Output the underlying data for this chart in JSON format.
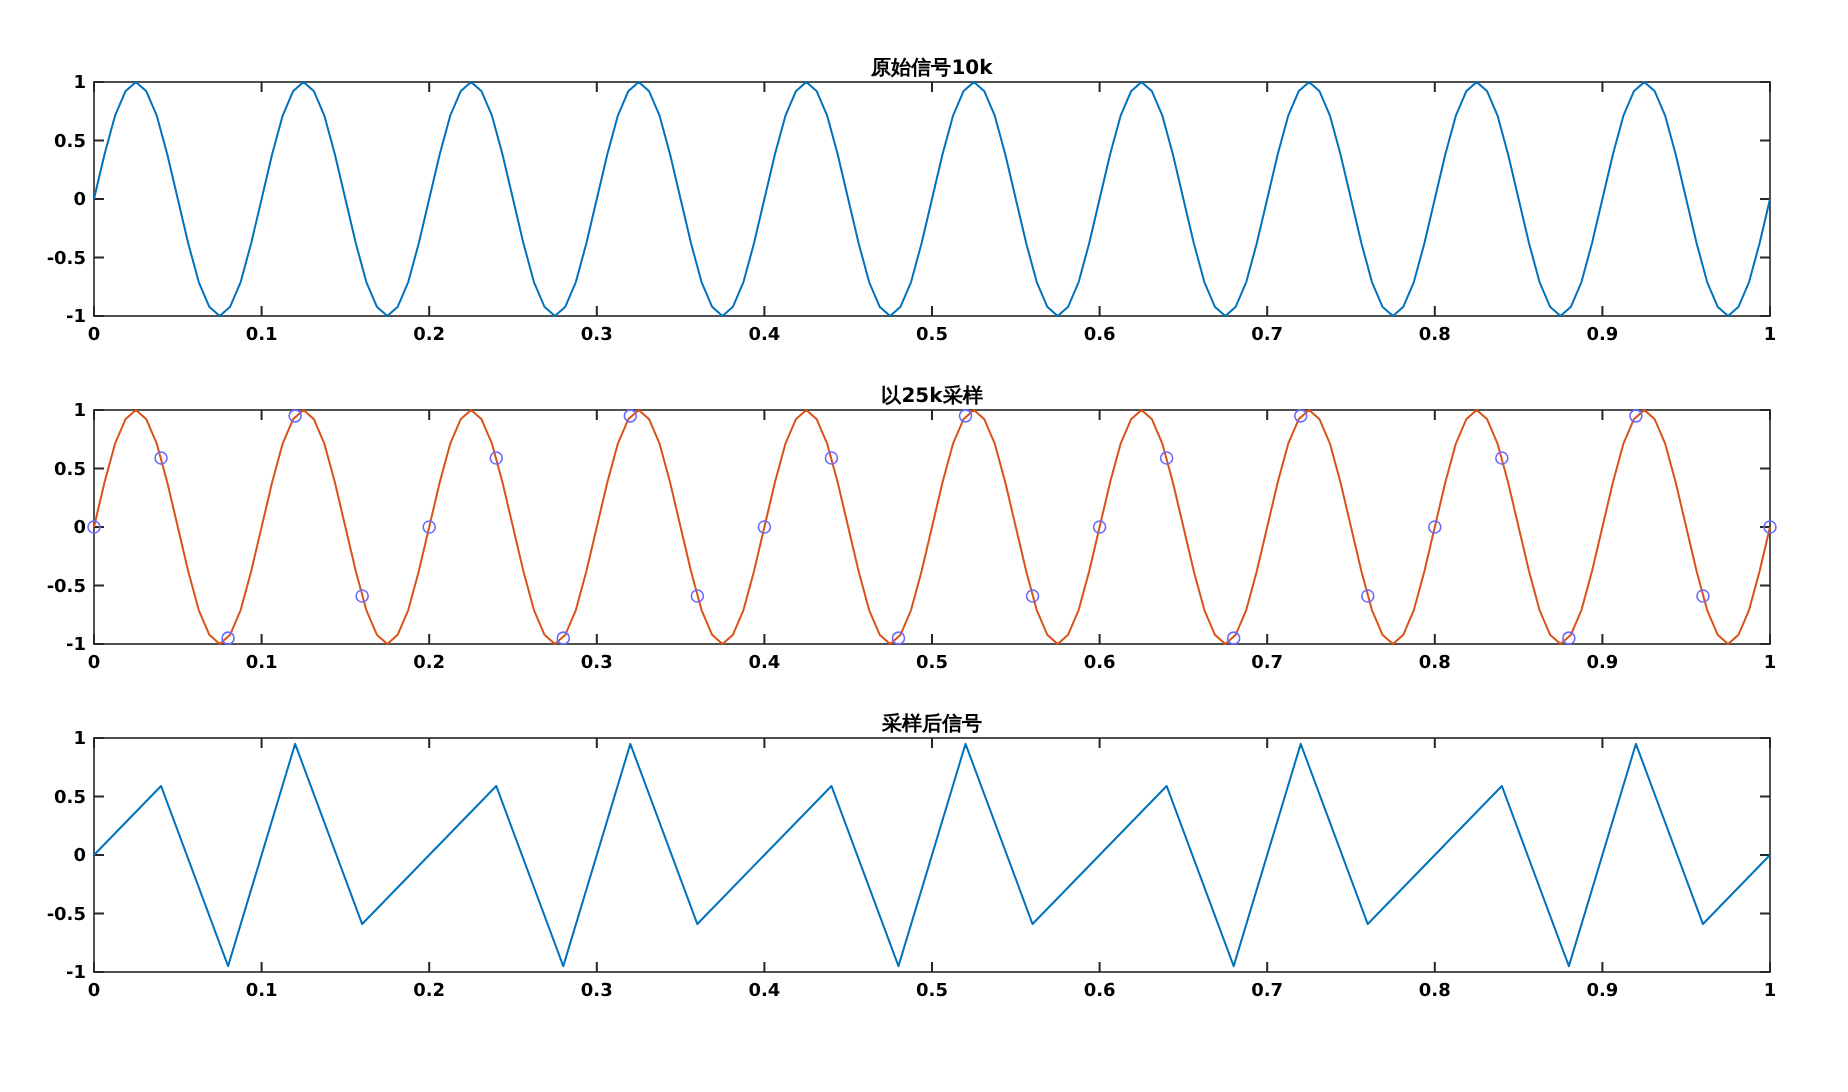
{
  "chart_data": [
    {
      "type": "line",
      "title": "原始信号10k",
      "xlim": [
        0,
        1
      ],
      "ylim": [
        -1,
        1
      ],
      "xticks": [
        0,
        0.1,
        0.2,
        0.3,
        0.4,
        0.5,
        0.6,
        0.7,
        0.8,
        0.9,
        1
      ],
      "yticks": [
        -1,
        -0.5,
        0,
        0.5,
        1
      ],
      "series": [
        {
          "color": "#0072bd",
          "x": [
            0,
            0.00625,
            0.0125,
            0.01875,
            0.025,
            0.03125,
            0.0375,
            0.04375,
            0.05,
            0.05625,
            0.0625,
            0.06875,
            0.075,
            0.08125,
            0.0875,
            0.09375,
            0.1,
            0.10625,
            0.1125,
            0.11875,
            0.125,
            0.13125,
            0.1375,
            0.14375,
            0.15,
            0.15625,
            0.1625,
            0.16875,
            0.175,
            0.18125,
            0.1875,
            0.19375,
            0.2,
            0.20625,
            0.2125,
            0.21875,
            0.225,
            0.23125,
            0.2375,
            0.24375,
            0.25,
            0.25625,
            0.2625,
            0.26875,
            0.275,
            0.28125,
            0.2875,
            0.29375,
            0.3,
            0.30625,
            0.3125,
            0.31875,
            0.325,
            0.33125,
            0.3375,
            0.34375,
            0.35,
            0.35625,
            0.3625,
            0.36875,
            0.375,
            0.38125,
            0.3875,
            0.39375,
            0.4,
            0.40625,
            0.4125,
            0.41875,
            0.425,
            0.43125,
            0.4375,
            0.44375,
            0.45,
            0.45625,
            0.4625,
            0.46875,
            0.475,
            0.48125,
            0.4875,
            0.49375,
            0.5,
            0.50625,
            0.5125,
            0.51875,
            0.525,
            0.53125,
            0.5375,
            0.54375,
            0.55,
            0.55625,
            0.5625,
            0.56875,
            0.575,
            0.58125,
            0.5875,
            0.59375,
            0.6,
            0.60625,
            0.6125,
            0.61875,
            0.625,
            0.63125,
            0.6375,
            0.64375,
            0.65,
            0.65625,
            0.6625,
            0.66875,
            0.675,
            0.68125,
            0.6875,
            0.69375,
            0.7,
            0.70625,
            0.7125,
            0.71875,
            0.725,
            0.73125,
            0.7375,
            0.74375,
            0.75,
            0.75625,
            0.7625,
            0.76875,
            0.775,
            0.78125,
            0.7875,
            0.79375,
            0.8,
            0.80625,
            0.8125,
            0.81875,
            0.825,
            0.83125,
            0.8375,
            0.84375,
            0.85,
            0.85625,
            0.8625,
            0.86875,
            0.875,
            0.88125,
            0.8875,
            0.89375,
            0.9,
            0.90625,
            0.9125,
            0.91875,
            0.925,
            0.93125,
            0.9375,
            0.94375,
            0.95,
            0.95625,
            0.9625,
            0.96875,
            0.975,
            0.98125,
            0.9875,
            0.99375,
            1
          ],
          "values": [
            0,
            0.38,
            0.71,
            0.92,
            1,
            0.92,
            0.71,
            0.38,
            0,
            -0.38,
            -0.71,
            -0.92,
            -1,
            -0.92,
            -0.71,
            -0.38,
            0,
            0.38,
            0.71,
            0.92,
            1,
            0.92,
            0.71,
            0.38,
            0,
            -0.38,
            -0.71,
            -0.92,
            -1,
            -0.92,
            -0.71,
            -0.38,
            0,
            0.38,
            0.71,
            0.92,
            1,
            0.92,
            0.71,
            0.38,
            0,
            -0.38,
            -0.71,
            -0.92,
            -1,
            -0.92,
            -0.71,
            -0.38,
            0,
            0.38,
            0.71,
            0.92,
            1,
            0.92,
            0.71,
            0.38,
            0,
            -0.38,
            -0.71,
            -0.92,
            -1,
            -0.92,
            -0.71,
            -0.38,
            0,
            0.38,
            0.71,
            0.92,
            1,
            0.92,
            0.71,
            0.38,
            0,
            -0.38,
            -0.71,
            -0.92,
            -1,
            -0.92,
            -0.71,
            -0.38,
            0,
            0.38,
            0.71,
            0.92,
            1,
            0.92,
            0.71,
            0.38,
            0,
            -0.38,
            -0.71,
            -0.92,
            -1,
            -0.92,
            -0.71,
            -0.38,
            0,
            0.38,
            0.71,
            0.92,
            1,
            0.92,
            0.71,
            0.38,
            0,
            -0.38,
            -0.71,
            -0.92,
            -1,
            -0.92,
            -0.71,
            -0.38,
            0,
            0.38,
            0.71,
            0.92,
            1,
            0.92,
            0.71,
            0.38,
            0,
            -0.38,
            -0.71,
            -0.92,
            -1,
            -0.92,
            -0.71,
            -0.38,
            0,
            0.38,
            0.71,
            0.92,
            1,
            0.92,
            0.71,
            0.38,
            0,
            -0.38,
            -0.71,
            -0.92,
            -1,
            -0.92,
            -0.71,
            -0.38,
            0,
            0.38,
            0.71,
            0.92,
            1,
            0.92,
            0.71,
            0.38,
            0,
            -0.38,
            -0.71,
            -0.92,
            -1,
            -0.92,
            -0.71,
            -0.38,
            0
          ]
        }
      ]
    },
    {
      "type": "line",
      "title": "以25k采样",
      "xlim": [
        0,
        1
      ],
      "ylim": [
        -1,
        1
      ],
      "xticks": [
        0,
        0.1,
        0.2,
        0.3,
        0.4,
        0.5,
        0.6,
        0.7,
        0.8,
        0.9,
        1
      ],
      "yticks": [
        -1,
        -0.5,
        0,
        0.5,
        1
      ],
      "series": [
        {
          "color": "#d95319",
          "x": [
            0,
            0.00625,
            0.0125,
            0.01875,
            0.025,
            0.03125,
            0.0375,
            0.04375,
            0.05,
            0.05625,
            0.0625,
            0.06875,
            0.075,
            0.08125,
            0.0875,
            0.09375,
            0.1,
            0.10625,
            0.1125,
            0.11875,
            0.125,
            0.13125,
            0.1375,
            0.14375,
            0.15,
            0.15625,
            0.1625,
            0.16875,
            0.175,
            0.18125,
            0.1875,
            0.19375,
            0.2,
            0.20625,
            0.2125,
            0.21875,
            0.225,
            0.23125,
            0.2375,
            0.24375,
            0.25,
            0.25625,
            0.2625,
            0.26875,
            0.275,
            0.28125,
            0.2875,
            0.29375,
            0.3,
            0.30625,
            0.3125,
            0.31875,
            0.325,
            0.33125,
            0.3375,
            0.34375,
            0.35,
            0.35625,
            0.3625,
            0.36875,
            0.375,
            0.38125,
            0.3875,
            0.39375,
            0.4,
            0.40625,
            0.4125,
            0.41875,
            0.425,
            0.43125,
            0.4375,
            0.44375,
            0.45,
            0.45625,
            0.4625,
            0.46875,
            0.475,
            0.48125,
            0.4875,
            0.49375,
            0.5,
            0.50625,
            0.5125,
            0.51875,
            0.525,
            0.53125,
            0.5375,
            0.54375,
            0.55,
            0.55625,
            0.5625,
            0.56875,
            0.575,
            0.58125,
            0.5875,
            0.59375,
            0.6,
            0.60625,
            0.6125,
            0.61875,
            0.625,
            0.63125,
            0.6375,
            0.64375,
            0.65,
            0.65625,
            0.6625,
            0.66875,
            0.675,
            0.68125,
            0.6875,
            0.69375,
            0.7,
            0.70625,
            0.7125,
            0.71875,
            0.725,
            0.73125,
            0.7375,
            0.74375,
            0.75,
            0.75625,
            0.7625,
            0.76875,
            0.775,
            0.78125,
            0.7875,
            0.79375,
            0.8,
            0.80625,
            0.8125,
            0.81875,
            0.825,
            0.83125,
            0.8375,
            0.84375,
            0.85,
            0.85625,
            0.8625,
            0.86875,
            0.875,
            0.88125,
            0.8875,
            0.89375,
            0.9,
            0.90625,
            0.9125,
            0.91875,
            0.925,
            0.93125,
            0.9375,
            0.94375,
            0.95,
            0.95625,
            0.9625,
            0.96875,
            0.975,
            0.98125,
            0.9875,
            0.99375,
            1
          ],
          "values": [
            0,
            0.38,
            0.71,
            0.92,
            1,
            0.92,
            0.71,
            0.38,
            0,
            -0.38,
            -0.71,
            -0.92,
            -1,
            -0.92,
            -0.71,
            -0.38,
            0,
            0.38,
            0.71,
            0.92,
            1,
            0.92,
            0.71,
            0.38,
            0,
            -0.38,
            -0.71,
            -0.92,
            -1,
            -0.92,
            -0.71,
            -0.38,
            0,
            0.38,
            0.71,
            0.92,
            1,
            0.92,
            0.71,
            0.38,
            0,
            -0.38,
            -0.71,
            -0.92,
            -1,
            -0.92,
            -0.71,
            -0.38,
            0,
            0.38,
            0.71,
            0.92,
            1,
            0.92,
            0.71,
            0.38,
            0,
            -0.38,
            -0.71,
            -0.92,
            -1,
            -0.92,
            -0.71,
            -0.38,
            0,
            0.38,
            0.71,
            0.92,
            1,
            0.92,
            0.71,
            0.38,
            0,
            -0.38,
            -0.71,
            -0.92,
            -1,
            -0.92,
            -0.71,
            -0.38,
            0,
            0.38,
            0.71,
            0.92,
            1,
            0.92,
            0.71,
            0.38,
            0,
            -0.38,
            -0.71,
            -0.92,
            -1,
            -0.92,
            -0.71,
            -0.38,
            0,
            0.38,
            0.71,
            0.92,
            1,
            0.92,
            0.71,
            0.38,
            0,
            -0.38,
            -0.71,
            -0.92,
            -1,
            -0.92,
            -0.71,
            -0.38,
            0,
            0.38,
            0.71,
            0.92,
            1,
            0.92,
            0.71,
            0.38,
            0,
            -0.38,
            -0.71,
            -0.92,
            -1,
            -0.92,
            -0.71,
            -0.38,
            0,
            0.38,
            0.71,
            0.92,
            1,
            0.92,
            0.71,
            0.38,
            0,
            -0.38,
            -0.71,
            -0.92,
            -1,
            -0.92,
            -0.71,
            -0.38,
            0,
            0.38,
            0.71,
            0.92,
            1,
            0.92,
            0.71,
            0.38,
            0,
            -0.38,
            -0.71,
            -0.92,
            -1,
            -0.92,
            -0.71,
            -0.38,
            0
          ]
        },
        {
          "type": "scatter",
          "marker": "circle",
          "color": "#6a6aff",
          "x": [
            0,
            0.04,
            0.08,
            0.12,
            0.16,
            0.2,
            0.24,
            0.28,
            0.32,
            0.36,
            0.4,
            0.44,
            0.48,
            0.52,
            0.56,
            0.6,
            0.64,
            0.68,
            0.72,
            0.76,
            0.8,
            0.84,
            0.88,
            0.92,
            0.96,
            1
          ],
          "values": [
            0,
            0.59,
            -0.95,
            0.95,
            -0.59,
            0,
            0.59,
            -0.95,
            0.95,
            -0.59,
            0,
            0.59,
            -0.95,
            0.95,
            -0.59,
            0,
            0.59,
            -0.95,
            0.95,
            -0.59,
            0,
            0.59,
            -0.95,
            0.95,
            -0.59,
            0
          ]
        }
      ]
    },
    {
      "type": "line",
      "title": "采样后信号",
      "xlim": [
        0,
        1
      ],
      "ylim": [
        -1,
        1
      ],
      "xticks": [
        0,
        0.1,
        0.2,
        0.3,
        0.4,
        0.5,
        0.6,
        0.7,
        0.8,
        0.9,
        1
      ],
      "yticks": [
        -1,
        -0.5,
        0,
        0.5,
        1
      ],
      "series": [
        {
          "color": "#0072bd",
          "x": [
            0,
            0.04,
            0.08,
            0.12,
            0.16,
            0.2,
            0.24,
            0.28,
            0.32,
            0.36,
            0.4,
            0.44,
            0.48,
            0.52,
            0.56,
            0.6,
            0.64,
            0.68,
            0.72,
            0.76,
            0.8,
            0.84,
            0.88,
            0.92,
            0.96,
            1
          ],
          "values": [
            0,
            0.59,
            -0.95,
            0.95,
            -0.59,
            0,
            0.59,
            -0.95,
            0.95,
            -0.59,
            0,
            0.59,
            -0.95,
            0.95,
            -0.59,
            0,
            0.59,
            -0.95,
            0.95,
            -0.59,
            0,
            0.59,
            -0.95,
            0.95,
            -0.59,
            0
          ]
        }
      ]
    }
  ]
}
